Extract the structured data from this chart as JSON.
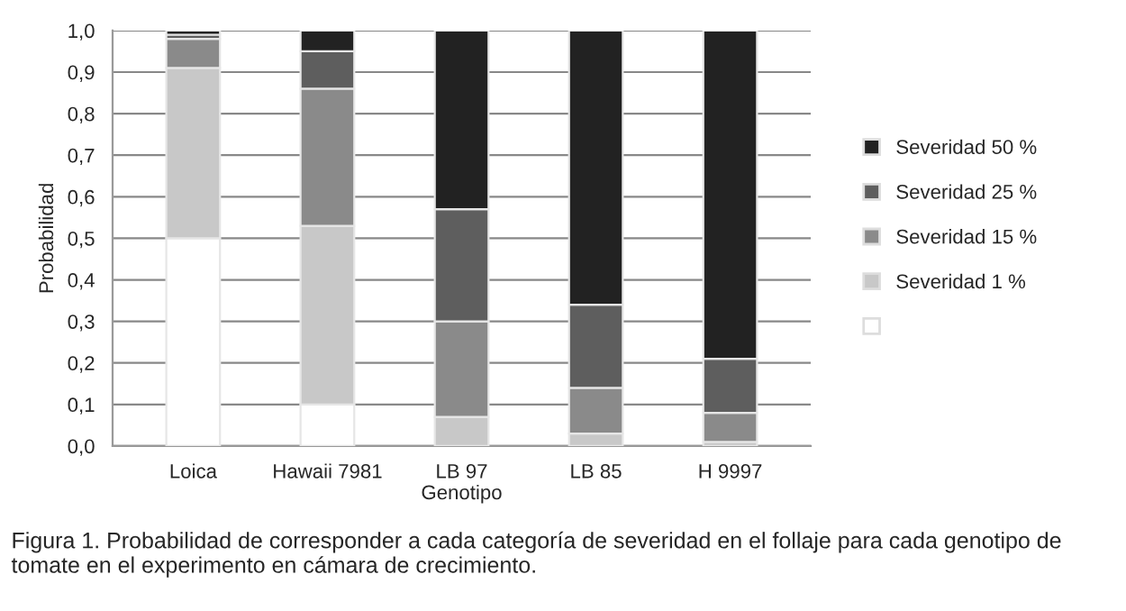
{
  "chart_data": {
    "type": "bar",
    "stacked": true,
    "categories": [
      "Loica",
      "Hawaii 7981",
      "LB 97",
      "LB 85",
      "H 9997"
    ],
    "series": [
      {
        "color": "#ffffff",
        "values": [
          0.5,
          0.1,
          0,
          0,
          0
        ]
      },
      {
        "name": "Severidad 1 %",
        "color": "#c8c8c8",
        "values": [
          0.41,
          0.43,
          0.07,
          0.03,
          0.01
        ]
      },
      {
        "name": "Severidad 15 %",
        "color": "#8a8a8a",
        "values": [
          0.07,
          0.33,
          0.23,
          0.11,
          0.07
        ]
      },
      {
        "name": "Severidad 25 %",
        "color": "#5e5e5e",
        "values": [
          0.01,
          0.09,
          0.27,
          0.2,
          0.13
        ]
      },
      {
        "name": "Severidad 50 %",
        "color": "#222222",
        "values": [
          0.01,
          0.05,
          0.43,
          0.66,
          0.79
        ]
      }
    ],
    "xlabel": "Genotipo",
    "ylabel": "Probabilidad",
    "ylim": [
      0,
      1.0
    ],
    "yticks": [
      {
        "value": 0,
        "label": "0,0"
      },
      {
        "value": 0.1,
        "label": "0,1"
      },
      {
        "value": 0.2,
        "label": "0,2"
      },
      {
        "value": 0.3,
        "label": "0,3"
      },
      {
        "value": 0.4,
        "label": "0,4"
      },
      {
        "value": 0.5,
        "label": "0,5"
      },
      {
        "value": 0.6,
        "label": "0,6"
      },
      {
        "value": 0.7,
        "label": "0,7"
      },
      {
        "value": 0.8,
        "label": "0,8"
      },
      {
        "value": 0.9,
        "label": "0,9"
      },
      {
        "value": 1.0,
        "label": "1,0"
      }
    ],
    "grid": "y",
    "legend": "right",
    "annotations": [
      "Figura 1. Probabilidad de corresponder a cada categoría de severidad en el follaje para cada genotipo de tomate en el experimento en cámara de crecimiento."
    ]
  }
}
